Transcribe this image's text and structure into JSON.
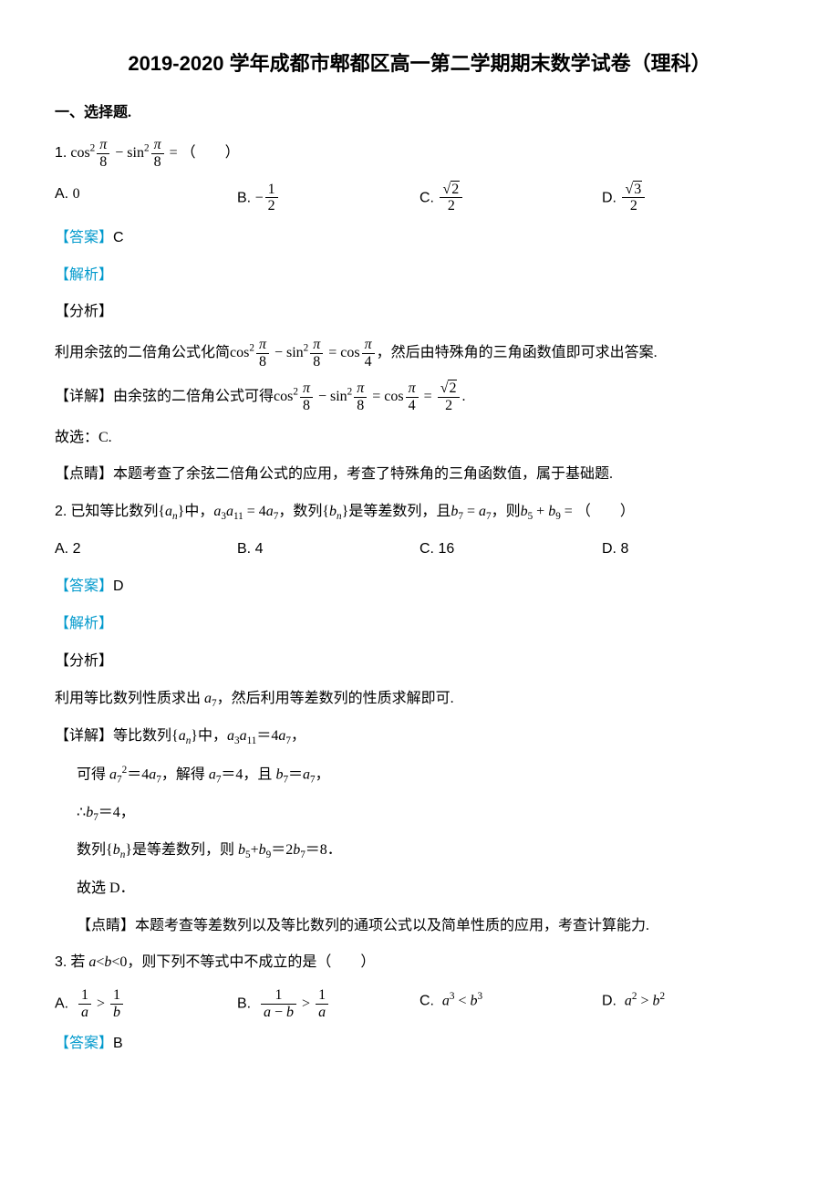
{
  "title": "2019-2020 学年成都市郫都区高一第二学期期末数学试卷（理科）",
  "section1": "一、选择题.",
  "q1": {
    "num": "1.",
    "text_prefix": "cos",
    "paren": "（　　）",
    "equals": " = ",
    "optA": "A.",
    "optA_val": "0",
    "optB": "B.",
    "optC": "C.",
    "optD": "D.",
    "answer_label": "【答案】",
    "answer": "C",
    "analysis_label": "【解析】",
    "fenxi_label": "【分析】",
    "fenxi_text_pre": "利用余弦的二倍角公式化简",
    "fenxi_text_post": "，然后由特殊角的三角函数值即可求出答案.",
    "detail_label": "【详解】",
    "detail_pre": "由余弦的二倍角公式可得",
    "period": ".",
    "guxuan": "故选：C.",
    "dianjing_label": "【点睛】",
    "dianjing_text": "本题考查了余弦二倍角公式的应用，考查了特殊角的三角函数值，属于基础题."
  },
  "q2": {
    "num": "2.",
    "text1": "已知等比数列",
    "text2": "中，",
    "text3": "，数列",
    "text4": "是等差数列，且",
    "text5": "，则",
    "paren": "（　　）",
    "optA": "A. 2",
    "optB": "B. 4",
    "optC": "C. 16",
    "optD": "D. 8",
    "answer_label": "【答案】",
    "answer": "D",
    "analysis_label": "【解析】",
    "fenxi_label": "【分析】",
    "fenxi_text": "利用等比数列性质求出 a₇，然后利用等差数列的性质求解即可.",
    "detail_label": "【详解】",
    "detail_l1": "等比数列{aₙ}中，a₃a₁₁＝4a₇，",
    "detail_l2": "可得 a₇²＝4a₇，解得 a₇＝4，且 b₇＝a₇，",
    "detail_l3": "∴b₇＝4，",
    "detail_l4": "数列{bₙ}是等差数列，则 b₅+b₉＝2b₇＝8．",
    "detail_l5": "故选 D．",
    "dianjing_label": "【点睛】",
    "dianjing_text": "本题考查等差数列以及等比数列的通项公式以及简单性质的应用，考查计算能力."
  },
  "q3": {
    "num": "3.",
    "text": "若 a<b<0，则下列不等式中不成立的是（　　）",
    "optA": "A.",
    "optB": "B.",
    "optC": "C.",
    "optD": "D.",
    "answer_label": "【答案】",
    "answer": "B"
  },
  "colors": {
    "text": "#000000",
    "link_blue": "#0099cc",
    "background": "#ffffff"
  },
  "fonts": {
    "body": "SimSun",
    "title": "SimHei",
    "math": "Times New Roman",
    "option_label": "Arial"
  }
}
